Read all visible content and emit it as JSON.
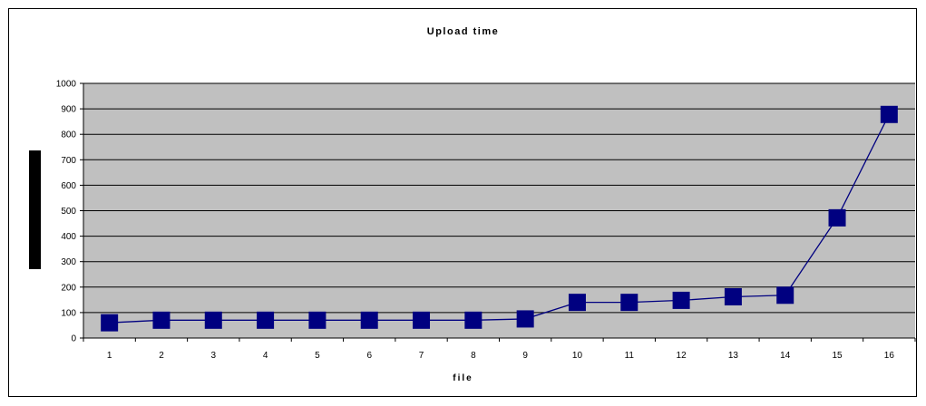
{
  "chart_data": {
    "type": "line",
    "title": "Upload time",
    "xlabel": "file",
    "ylabel": "",
    "categories": [
      "1",
      "2",
      "3",
      "4",
      "5",
      "6",
      "7",
      "8",
      "9",
      "10",
      "11",
      "12",
      "13",
      "14",
      "15",
      "16"
    ],
    "series": [
      {
        "values": [
          60,
          70,
          70,
          70,
          70,
          70,
          70,
          70,
          75,
          140,
          140,
          148,
          162,
          168,
          472,
          878
        ]
      }
    ],
    "ylim": [
      0,
      1000
    ],
    "yticks": [
      0,
      100,
      200,
      300,
      400,
      500,
      600,
      700,
      800,
      900,
      1000
    ],
    "grid": true,
    "legend": "none",
    "colors": {
      "plot_background": "#c0c0c0",
      "series": "#000080",
      "marker": "#000080",
      "grid": "#000000"
    }
  }
}
